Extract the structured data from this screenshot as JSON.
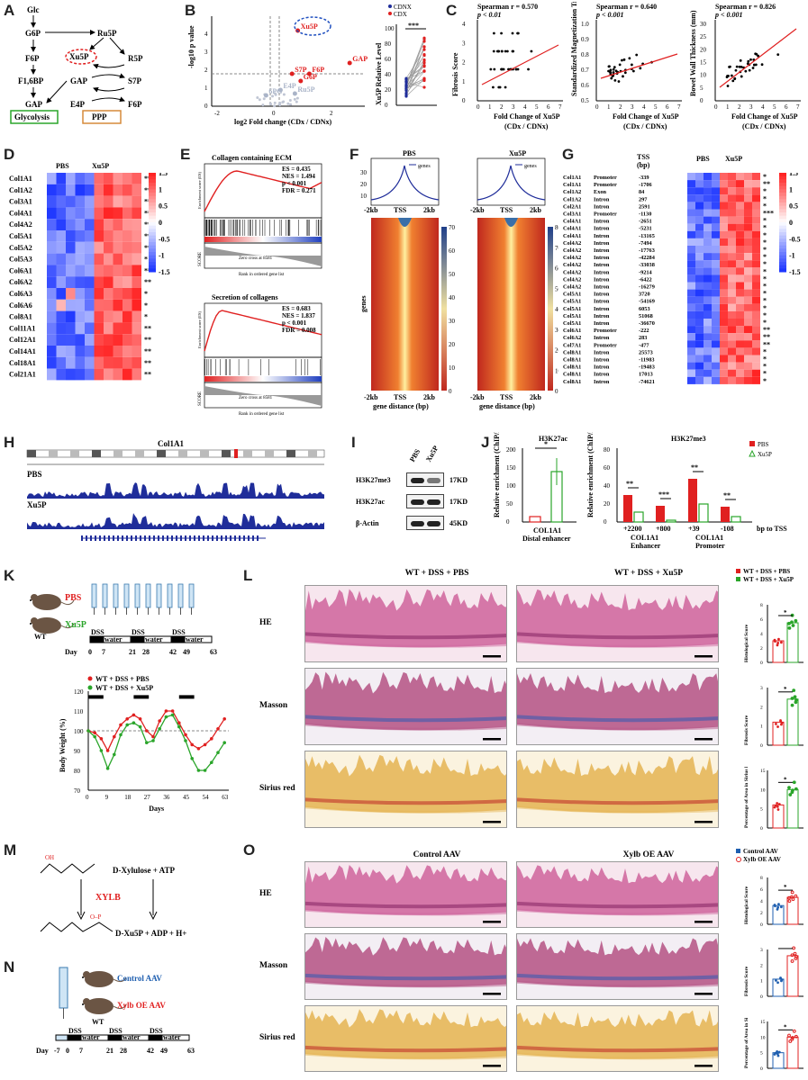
{
  "panels": [
    "A",
    "B",
    "C",
    "D",
    "E",
    "F",
    "G",
    "H",
    "I",
    "J",
    "K",
    "L",
    "M",
    "N",
    "O"
  ],
  "A": {
    "nodes": [
      "Glc",
      "G6P",
      "Ru5P",
      "F6P",
      "Xu5P",
      "R5P",
      "F1,6BP",
      "GAP",
      "S7P",
      "GAP",
      "E4P",
      "F6P"
    ],
    "glycolysis": "Glycolysis",
    "ppp": "PPP"
  },
  "B": {
    "ylabel": "-log10 p value",
    "xlabel": "log2 Fold change (CDx / CDNx)",
    "xticks": [
      "-2",
      "0",
      "2"
    ],
    "yticks": [
      "0",
      "1",
      "2",
      "3",
      "4"
    ],
    "points": [
      {
        "label": "Xu5P",
        "x": 0.8,
        "y": 4.2,
        "color": "#e02020"
      },
      {
        "label": "GAP",
        "x": 2.6,
        "y": 2.4,
        "color": "#e02020"
      },
      {
        "label": "F6P",
        "x": 1.2,
        "y": 1.8,
        "color": "#e02020"
      },
      {
        "label": "S7P",
        "x": 0.6,
        "y": 1.8,
        "color": "#e02020"
      },
      {
        "label": "G6P",
        "x": 0.9,
        "y": 1.4,
        "color": "#e02020"
      },
      {
        "label": "E4P",
        "x": 0.2,
        "y": 0.9,
        "color": "#aab4c8"
      },
      {
        "label": "Ru5P",
        "x": 0.7,
        "y": 0.7,
        "color": "#aab4c8"
      },
      {
        "label": "6PG",
        "x": -0.3,
        "y": 0.6,
        "color": "#aab4c8"
      }
    ],
    "legend": [
      "CDNX",
      "CDX"
    ],
    "inset_ylabel": "Xu5P Relative Level",
    "inset_yticks": [
      "0",
      "20",
      "40",
      "60",
      "80",
      "100"
    ],
    "inset_sig": "***"
  },
  "C": {
    "plots": [
      {
        "title": "Spearman r = 0.570",
        "p": "p < 0.01",
        "ylabel": "Fibrosis Score",
        "xlabel": "Fold Change of Xu5P",
        "xsub": "(CDx / CDNx)",
        "yticks": [
          "0",
          "1",
          "2",
          "3",
          "4"
        ],
        "xticks": [
          "0",
          "1",
          "2",
          "3",
          "4",
          "5",
          "6",
          "7"
        ]
      },
      {
        "title": "Spearman r = 0.640",
        "p": "p < 0.001",
        "ylabel": "Standardized Magnetization Transfer Ratio",
        "xlabel": "Fold Change of Xu5P",
        "xsub": "(CDx / CDNx)",
        "yticks": [
          "0.5",
          "0.6",
          "0.7",
          "0.8",
          "0.9",
          "1.0"
        ],
        "xticks": [
          "0",
          "1",
          "2",
          "3",
          "4",
          "5",
          "6",
          "7"
        ]
      },
      {
        "title": "Spearman r = 0.826",
        "p": "p < 0.001",
        "ylabel": "Bowel Wall Thickness (mm)",
        "xlabel": "Fold Change of Xu5P",
        "xsub": "(CDx / CDNx)",
        "yticks": [
          "0",
          "5",
          "10",
          "15",
          "20",
          "25",
          "30"
        ],
        "xticks": [
          "0",
          "1",
          "2",
          "3",
          "4",
          "5",
          "6",
          "7"
        ]
      }
    ]
  },
  "D": {
    "groups": [
      "PBS",
      "Xu5P"
    ],
    "genes": [
      "Col1A1",
      "Col1A2",
      "Col3A1",
      "Col4A1",
      "Col4A2",
      "Col5A1",
      "Col5A2",
      "Col5A3",
      "Col6A1",
      "Col6A2",
      "Col6A3",
      "Col6A6",
      "Col8A1",
      "Col11A1",
      "Col12A1",
      "Col14A1",
      "Col18A1",
      "Col21A1"
    ],
    "sig": [
      "***",
      "**",
      "**",
      "***",
      "***",
      "**",
      "**",
      "*",
      "**",
      "**",
      "*",
      "*",
      "*",
      "**",
      "**",
      "**",
      "**",
      "**"
    ],
    "scale": [
      "1.5",
      "1",
      "0.5",
      "0",
      "-0.5",
      "-1",
      "-1.5"
    ]
  },
  "E": {
    "gsea": [
      {
        "title": "Collagen containing ECM",
        "ES": "ES = 0.435",
        "NES": "NES = 1.494",
        "p": "p < 0.001",
        "FDR": "FDR = 0.271",
        "zero": "Zero cross at 8581"
      },
      {
        "title": "Secretion of collagens",
        "ES": "ES = 0.683",
        "NES": "NES = 1.837",
        "p": "p < 0.001",
        "FDR": "FDR = 0.008",
        "zero": "Zero cross at 8581"
      }
    ],
    "xlabel": "Rank in ordered gene list",
    "ylabel": "Enrichment score (ES)",
    "score_label": "SCORE"
  },
  "F": {
    "groups": [
      "PBS",
      "Xu5P"
    ],
    "legend": "genes",
    "xticks": [
      "-2kb",
      "TSS",
      "2kb"
    ],
    "yticks_profile": [
      "10",
      "20",
      "30"
    ],
    "ylabel": "genes",
    "xlabel": "gene distance (bp)",
    "scale_pbs": [
      "70",
      "60",
      "50",
      "40",
      "30",
      "20",
      "10",
      "0"
    ],
    "scale_xu5p": [
      "80",
      "70",
      "60",
      "50",
      "40",
      "30",
      "20",
      "10",
      "0"
    ]
  },
  "G": {
    "header_tss": "TSS (bp)",
    "groups": [
      "PBS",
      "Xu5P"
    ],
    "rows": [
      [
        "Col1A1",
        "Promoter",
        "-339",
        "*"
      ],
      [
        "Col1A1",
        "Promoter",
        "-1706",
        "**"
      ],
      [
        "Col1A2",
        "Exon",
        "84",
        "*"
      ],
      [
        "Col1A2",
        "Intron",
        "297",
        "*"
      ],
      [
        "Col2A1",
        "Intron",
        "2591",
        "*"
      ],
      [
        "Col3A1",
        "Promoter",
        "-1130",
        "***"
      ],
      [
        "Col4A1",
        "Intron",
        "-2651",
        "*"
      ],
      [
        "Col4A1",
        "Intron",
        "-5231",
        "*"
      ],
      [
        "Col4A1",
        "Intron",
        "-13165",
        "*"
      ],
      [
        "Col4A2",
        "Intron",
        "-7494",
        "*"
      ],
      [
        "Col4A2",
        "Intron",
        "-17763",
        "*"
      ],
      [
        "Col4A2",
        "Intron",
        "-42284",
        "*"
      ],
      [
        "Col4A2",
        "Intron",
        "-33038",
        "*"
      ],
      [
        "Col4A2",
        "Intron",
        "-9214",
        "*"
      ],
      [
        "Col4A2",
        "Intron",
        "-6422",
        "*"
      ],
      [
        "Col4A2",
        "Intron",
        "-16279",
        "*"
      ],
      [
        "Col5A1",
        "Intron",
        "3720",
        "*"
      ],
      [
        "Col5A1",
        "Intron",
        "-54169",
        "*"
      ],
      [
        "Col5A1",
        "Intron",
        "6053",
        "*"
      ],
      [
        "Col5A1",
        "Intron",
        "51068",
        "*"
      ],
      [
        "Col5A1",
        "Intron",
        "-36670",
        "*"
      ],
      [
        "Col6A1",
        "Promoter",
        "-222",
        "**"
      ],
      [
        "Col6A2",
        "Intron",
        "283",
        "**"
      ],
      [
        "Col7A1",
        "Promoter",
        "-477",
        "**"
      ],
      [
        "Col8A1",
        "Intron",
        "25573",
        "*"
      ],
      [
        "Col8A1",
        "Intron",
        "-11983",
        "*"
      ],
      [
        "Col8A1",
        "Intron",
        "-19483",
        "*"
      ],
      [
        "Col8A1",
        "Intron",
        "17013",
        "*"
      ],
      [
        "Col8A1",
        "Intron",
        "-74621",
        "*"
      ]
    ],
    "scale": [
      "1.5",
      "1",
      "0.5",
      "0",
      "-0.5",
      "-1",
      "-1.5"
    ]
  },
  "H": {
    "gene": "Col1A1",
    "tracks": [
      "PBS",
      "Xu5P"
    ]
  },
  "I": {
    "lanes": [
      "PBS",
      "Xu5P"
    ],
    "bands": [
      {
        "name": "H3K27me3",
        "kd": "17KD"
      },
      {
        "name": "H3K27ac",
        "kd": "17KD"
      },
      {
        "name": "β-Actin",
        "kd": "45KD"
      }
    ]
  },
  "J": {
    "left": {
      "title": "H3K27ac",
      "ylabel": "Relative enrichment (ChIP/IgG)",
      "xlabel": "COL1A1",
      "xsub": "Distal enhancer",
      "yticks": [
        "0",
        "50",
        "100",
        "150",
        "200"
      ],
      "sig": "*",
      "pbs": 15,
      "xu5p": 140
    },
    "right": {
      "title": "H3K27me3",
      "ylabel": "Relative enrichment (ChIP/IgG)",
      "yticks": [
        "0",
        "20",
        "40",
        "60",
        "80"
      ],
      "sites": [
        "+2200",
        "+800",
        "+39",
        "-108"
      ],
      "pbs": [
        30,
        18,
        48,
        17
      ],
      "xu5p": [
        11,
        2,
        20,
        6
      ],
      "sig": [
        "**",
        "***",
        "**",
        "**"
      ],
      "group_labels": [
        "COL1A1",
        "Enhancer",
        "COL1A1",
        "Promoter"
      ],
      "suffix": "bp to TSS",
      "legend": [
        "PBS",
        "Xu5P"
      ]
    }
  },
  "K": {
    "groups": [
      "PBS",
      "Xu5P"
    ],
    "mouse": "WT",
    "timeline": {
      "day_label": "Day",
      "days": [
        "0",
        "7",
        "21",
        "28",
        "42",
        "49",
        "63"
      ],
      "segments": [
        "DSS",
        "water",
        "DSS",
        "water",
        "DSS",
        "water"
      ]
    },
    "chart": {
      "legend": [
        "WT + DSS + PBS",
        "WT + DSS + Xu5P"
      ],
      "ylabel": "Body Weight (%)",
      "xlabel": "Days",
      "xticks": [
        "0",
        "9",
        "18",
        "27",
        "36",
        "45",
        "54",
        "63"
      ],
      "yticks": [
        "70",
        "80",
        "90",
        "100",
        "110",
        "120"
      ],
      "x": [
        0,
        3,
        6,
        9,
        12,
        15,
        18,
        21,
        24,
        27,
        30,
        33,
        36,
        39,
        42,
        45,
        48,
        51,
        54,
        57,
        60,
        63
      ],
      "pbs": [
        100,
        99,
        96,
        90,
        97,
        103,
        106,
        108,
        106,
        100,
        97,
        105,
        110,
        110,
        104,
        98,
        93,
        91,
        93,
        96,
        101,
        106
      ],
      "xu5p": [
        100,
        97,
        90,
        81,
        88,
        98,
        103,
        104,
        102,
        94,
        95,
        101,
        107,
        108,
        102,
        95,
        86,
        80,
        80,
        84,
        89,
        94
      ]
    }
  },
  "L": {
    "columns": [
      "WT + DSS + PBS",
      "WT + DSS + Xu5P"
    ],
    "rows": [
      "HE",
      "Masson",
      "Sirius red"
    ],
    "legend": [
      "WT + DSS + PBS",
      "WT + DSS + Xu5P"
    ],
    "bars": [
      {
        "ylabel": "Histological Score",
        "yticks": [
          "0",
          "2",
          "4",
          "6",
          "8"
        ],
        "pbs": 3,
        "xu5p": 5.5,
        "sig": "*"
      },
      {
        "ylabel": "Fibrosis Score",
        "yticks": [
          "0",
          "1",
          "2",
          "3"
        ],
        "pbs": 1.2,
        "xu5p": 2.4,
        "sig": "*"
      },
      {
        "ylabel": "Percentage of Area in Sirius Red Staining",
        "yticks": [
          "0",
          "5",
          "10",
          "15"
        ],
        "pbs": 6,
        "xu5p": 10,
        "sig": "*"
      }
    ]
  },
  "M": {
    "reactants": "D-Xylulose + ATP",
    "enzyme": "XYLB",
    "products": "D-Xu5P + ADP + H+"
  },
  "N": {
    "groups": [
      "Control AAV",
      "Xylb OE AAV"
    ],
    "mouse": "WT",
    "timeline": {
      "day_label": "Day",
      "days": [
        "-7",
        "0",
        "7",
        "21",
        "28",
        "42",
        "49",
        "63"
      ],
      "segments": [
        "DSS",
        "water",
        "DSS",
        "water",
        "DSS",
        "water"
      ]
    }
  },
  "O": {
    "columns": [
      "Control AAV",
      "Xylb OE AAV"
    ],
    "rows": [
      "HE",
      "Masson",
      "Sirius red"
    ],
    "legend": [
      "Control AAV",
      "Xylb OE AAV"
    ],
    "bars": [
      {
        "ylabel": "Histological Score",
        "yticks": [
          "0",
          "2",
          "4",
          "6",
          "8"
        ],
        "ctrl": 3.2,
        "oe": 4.6,
        "sig": "*"
      },
      {
        "ylabel": "Fibrosis Score",
        "yticks": [
          "0",
          "1",
          "2",
          "3"
        ],
        "ctrl": 1.1,
        "oe": 2.6,
        "sig": "*"
      },
      {
        "ylabel": "Percentage of Area in Sirius Red Staining",
        "yticks": [
          "0",
          "5",
          "10",
          "15"
        ],
        "ctrl": 5,
        "oe": 10,
        "sig": "*"
      }
    ]
  },
  "colors": {
    "red": "#e02020",
    "green": "#2aa52a",
    "blue": "#2040a0",
    "darkblue": "#1f2d9a"
  }
}
